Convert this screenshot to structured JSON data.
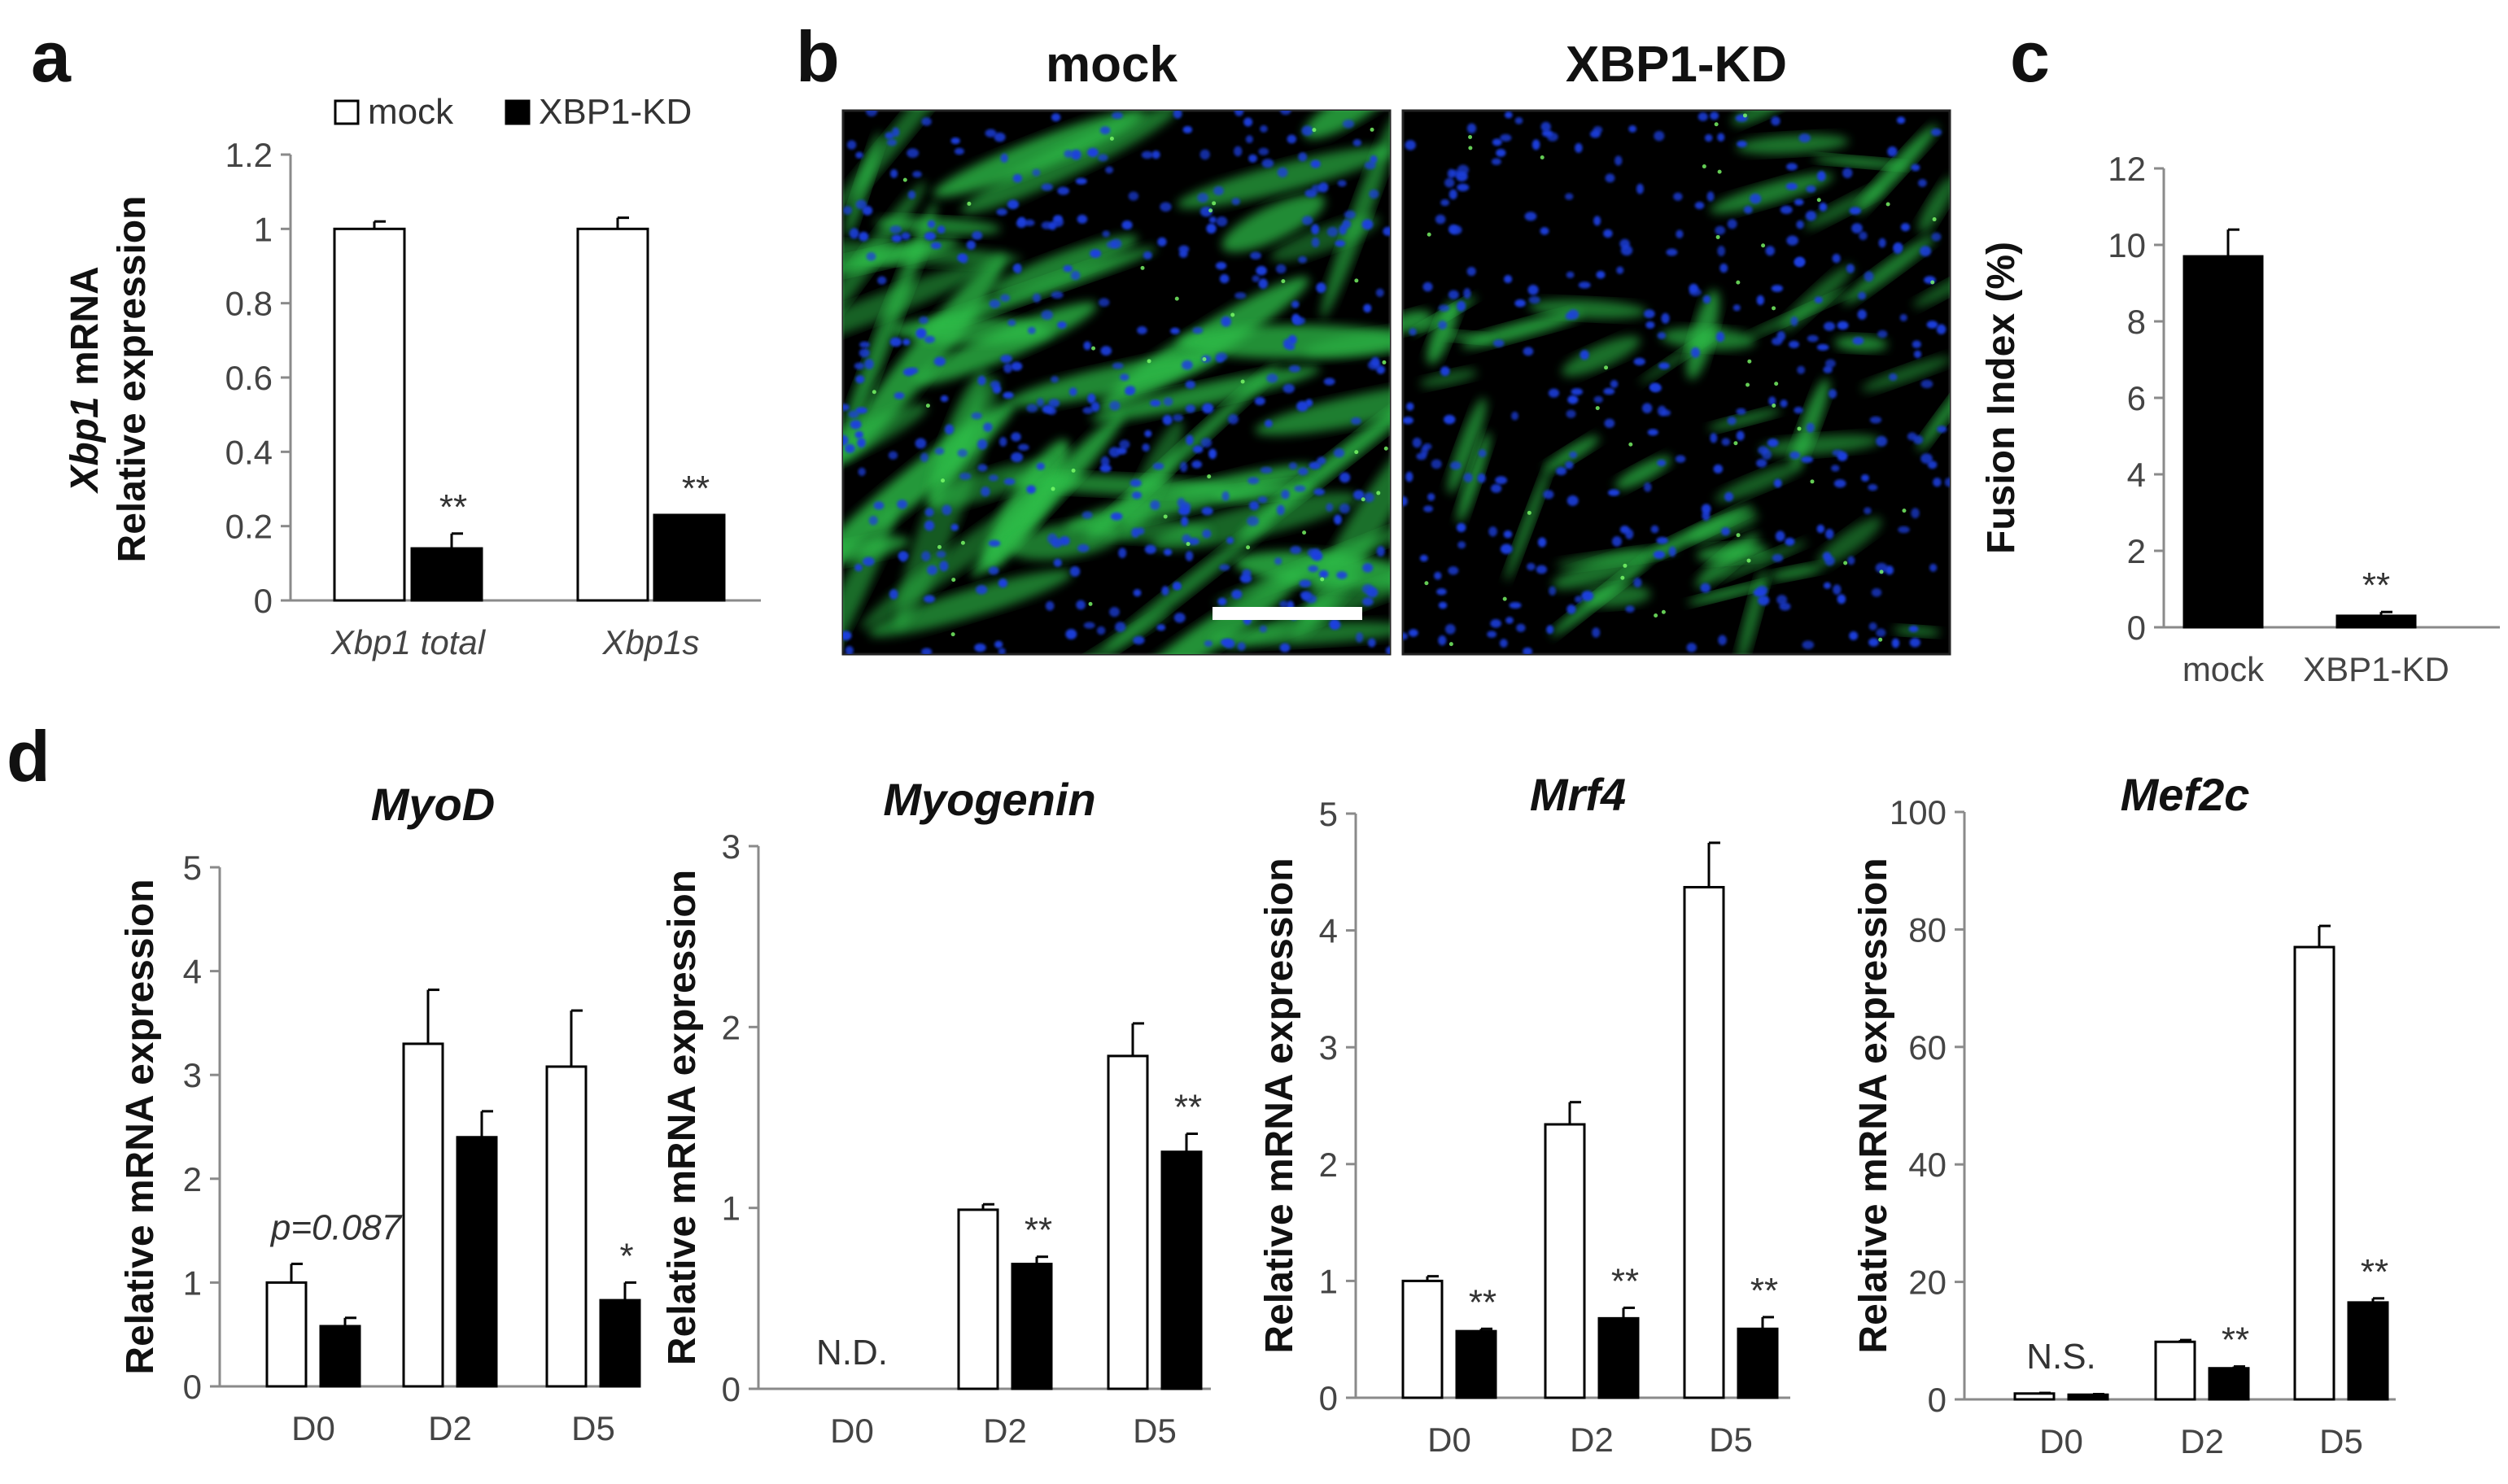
{
  "panels": {
    "a": "a",
    "b": "b",
    "c": "c",
    "d": "d"
  },
  "legend": {
    "mock": "mock",
    "kd": "XBP1-KD"
  },
  "colors": {
    "mock": "#ffffff",
    "kd": "#000000",
    "axis": "#8a8a8a",
    "nuclei": "#1f3fe0",
    "myotubes": "#2fbf4a",
    "background": "#000000"
  },
  "micrographs": {
    "left_label": "mock",
    "right_label": "XBP1-KD",
    "stain_colors": [
      "blue nuclei (DAPI)",
      "green myotubes (MHC)"
    ],
    "scale_bar": true
  },
  "chart_data": [
    {
      "id": "a",
      "type": "bar",
      "title": "",
      "ylabel_line1_italic": "Xbp1",
      "ylabel_line1_rest": " mRNA",
      "ylabel_line2": "Relative expression",
      "categories": [
        "Xbp1 total",
        "Xbp1s"
      ],
      "category_style": "italic",
      "ylim": [
        0,
        1.2
      ],
      "yticks": [
        "0",
        "0.2",
        "0.4",
        "0.6",
        "0.8",
        "1",
        "1.2"
      ],
      "series": [
        {
          "name": "mock",
          "values": [
            1.0,
            1.0
          ],
          "errors": [
            0.02,
            0.03
          ]
        },
        {
          "name": "XBP1-KD",
          "values": [
            0.14,
            0.23
          ],
          "errors": [
            0.04,
            0.0
          ]
        }
      ],
      "annotations": [
        {
          "category": 0,
          "series": 1,
          "text": "**"
        },
        {
          "category": 1,
          "series": 1,
          "text": "**"
        }
      ],
      "legend": "top"
    },
    {
      "id": "c",
      "type": "bar",
      "title": "",
      "ylabel": "Fusion Index (%)",
      "categories": [
        "mock",
        "XBP1-KD"
      ],
      "ylim": [
        0,
        12
      ],
      "yticks": [
        "0",
        "2",
        "4",
        "6",
        "8",
        "10",
        "12"
      ],
      "series": [
        {
          "name": "Fusion Index",
          "values": [
            9.7,
            0.3
          ],
          "errors": [
            0.7,
            0.1
          ]
        }
      ],
      "annotations": [
        {
          "category": 1,
          "series": 0,
          "text": "**"
        }
      ]
    },
    {
      "id": "d1",
      "type": "bar",
      "title": "MyoD",
      "ylabel": "Relative  mRNA expression",
      "categories": [
        "D0",
        "D2",
        "D5"
      ],
      "ylim": [
        0,
        5
      ],
      "yticks": [
        "0",
        "1",
        "2",
        "3",
        "4",
        "5"
      ],
      "series": [
        {
          "name": "mock",
          "values": [
            1.0,
            3.3,
            3.08
          ],
          "errors": [
            0.18,
            0.52,
            0.54
          ]
        },
        {
          "name": "XBP1-KD",
          "values": [
            0.58,
            2.4,
            0.83
          ],
          "errors": [
            0.08,
            0.25,
            0.17
          ]
        }
      ],
      "annotations": [
        {
          "category": 0,
          "series": -1,
          "text": "p=0.087",
          "italic": true
        },
        {
          "category": 2,
          "series": 1,
          "text": "*"
        }
      ]
    },
    {
      "id": "d2",
      "type": "bar",
      "title": "Myogenin",
      "ylabel": "Relative  mRNA expression",
      "categories": [
        "D0",
        "D2",
        "D5"
      ],
      "ylim": [
        0,
        3
      ],
      "yticks": [
        "0",
        "1",
        "2",
        "3"
      ],
      "series": [
        {
          "name": "mock",
          "values": [
            0,
            0.99,
            1.84
          ],
          "errors": [
            0,
            0.03,
            0.18
          ]
        },
        {
          "name": "XBP1-KD",
          "values": [
            0,
            0.69,
            1.31
          ],
          "errors": [
            0,
            0.04,
            0.1
          ]
        }
      ],
      "annotations": [
        {
          "category": 0,
          "series": -1,
          "text": "N.D."
        },
        {
          "category": 1,
          "series": 1,
          "text": "**"
        },
        {
          "category": 2,
          "series": 1,
          "text": "**"
        }
      ]
    },
    {
      "id": "d3",
      "type": "bar",
      "title": "Mrf4",
      "ylabel": "Relative  mRNA expression",
      "categories": [
        "D0",
        "D2",
        "D5"
      ],
      "ylim": [
        0,
        5
      ],
      "yticks": [
        "0",
        "1",
        "2",
        "3",
        "4",
        "5"
      ],
      "series": [
        {
          "name": "mock",
          "values": [
            1.0,
            2.34,
            4.37
          ],
          "errors": [
            0.04,
            0.19,
            0.38
          ]
        },
        {
          "name": "XBP1-KD",
          "values": [
            0.57,
            0.68,
            0.59
          ],
          "errors": [
            0.02,
            0.09,
            0.1
          ]
        }
      ],
      "annotations": [
        {
          "category": 0,
          "series": 1,
          "text": "**"
        },
        {
          "category": 1,
          "series": 1,
          "text": "**"
        },
        {
          "category": 2,
          "series": 1,
          "text": "**"
        }
      ]
    },
    {
      "id": "d4",
      "type": "bar",
      "title": "Mef2c",
      "ylabel": "Relative  mRNA expression",
      "categories": [
        "D0",
        "D2",
        "D5"
      ],
      "ylim": [
        0,
        100
      ],
      "yticks": [
        "0",
        "20",
        "40",
        "60",
        "80",
        "100"
      ],
      "series": [
        {
          "name": "mock",
          "values": [
            1.0,
            9.8,
            77
          ],
          "errors": [
            0.1,
            0.3,
            3.6
          ]
        },
        {
          "name": "XBP1-KD",
          "values": [
            0.8,
            5.3,
            16.5
          ],
          "errors": [
            0.1,
            0.3,
            0.7
          ]
        }
      ],
      "annotations": [
        {
          "category": 0,
          "series": -1,
          "text": "N.S."
        },
        {
          "category": 1,
          "series": 1,
          "text": "**"
        },
        {
          "category": 2,
          "series": 1,
          "text": "**"
        }
      ]
    }
  ]
}
